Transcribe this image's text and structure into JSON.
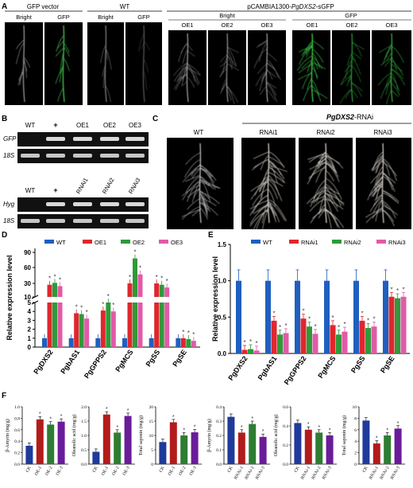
{
  "panels": {
    "A": {
      "letter": "A",
      "group1": {
        "title": "GFP vector",
        "labels": [
          "Bright",
          "GFP"
        ]
      },
      "group2": {
        "title": "WT",
        "labels": [
          "Bright",
          "GFP"
        ]
      },
      "group3": {
        "title": "pCAMBIA1300-",
        "title_italic": "PgDXS2",
        "title_suffix": "-sGFP",
        "sub_bright": "Bright",
        "sub_gfp": "GFP",
        "bright_lines": [
          "OE1",
          "OE2",
          "OE3"
        ],
        "gfp_lines": [
          "OE1",
          "OE2",
          "OE3"
        ]
      }
    },
    "B": {
      "letter": "B",
      "gel1": {
        "lanes": [
          "WT",
          "+",
          "OE1",
          "OE2",
          "OE3"
        ],
        "rows": [
          "GFP",
          "18S"
        ]
      },
      "gel2": {
        "lanes": [
          "WT",
          "+",
          "RNAi1",
          "RNAi2",
          "RNAi3"
        ],
        "rows": [
          "Hyg",
          "18S"
        ]
      }
    },
    "C": {
      "letter": "C",
      "title_italic": "PgDXS2",
      "title_suffix": "-RNAi",
      "wt": "WT",
      "lines": [
        "RNAi1",
        "RNAi2",
        "RNAi3"
      ]
    },
    "D": {
      "letter": "D"
    },
    "E": {
      "letter": "E"
    },
    "F": {
      "letter": "F"
    }
  },
  "chart_data": [
    {
      "id": "D",
      "type": "bar",
      "ylabel": "Relative expression level",
      "categories": [
        "PgDXS2",
        "PgbAS1",
        "PgGPPS2",
        "PgMCS",
        "PgSS",
        "PgSE"
      ],
      "yaxis_break": true,
      "ticks_lower": [
        "0",
        "1",
        "2",
        "3",
        "4",
        "5"
      ],
      "ticks_upper": [
        "10",
        "30",
        "60",
        "90"
      ],
      "series": [
        {
          "name": "WT",
          "color": "#1f5fbf",
          "values": [
            1,
            1,
            1,
            1,
            1,
            1
          ],
          "sig": [
            false,
            false,
            false,
            false,
            false,
            false
          ]
        },
        {
          "name": "OE1",
          "color": "#e0262d",
          "values": [
            28,
            3.8,
            4.1,
            30,
            30,
            1
          ],
          "sig": [
            true,
            true,
            true,
            true,
            true,
            true
          ]
        },
        {
          "name": "OE2",
          "color": "#2e9a3a",
          "values": [
            31,
            3.7,
            7.8,
            78,
            28,
            0.9
          ],
          "sig": [
            true,
            true,
            true,
            true,
            true,
            true
          ]
        },
        {
          "name": "OE3",
          "color": "#e25aa8",
          "values": [
            26,
            3.2,
            4.0,
            47,
            24,
            0.7
          ],
          "sig": [
            true,
            true,
            true,
            true,
            true,
            true
          ]
        }
      ]
    },
    {
      "id": "E",
      "type": "bar",
      "ylabel": "Relative expression level",
      "categories": [
        "PgDXS2",
        "PgbAS1",
        "PgGPPS2",
        "PgMCS",
        "PgSS",
        "PgSE"
      ],
      "ylim": [
        0,
        1.5
      ],
      "yticks": [
        "0.0",
        "0.5",
        "1.0",
        "1.5"
      ],
      "series": [
        {
          "name": "WT",
          "color": "#1f5fbf",
          "values": [
            1.0,
            1.0,
            1.0,
            1.0,
            1.0,
            1.0
          ],
          "sig": [
            false,
            false,
            false,
            false,
            false,
            false
          ]
        },
        {
          "name": "RNAi1",
          "color": "#e0262d",
          "values": [
            0.05,
            0.45,
            0.48,
            0.39,
            0.45,
            0.78
          ],
          "sig": [
            true,
            true,
            true,
            true,
            true,
            true
          ]
        },
        {
          "name": "RNAi2",
          "color": "#2e9a3a",
          "values": [
            0.06,
            0.26,
            0.37,
            0.26,
            0.35,
            0.76
          ],
          "sig": [
            true,
            true,
            true,
            true,
            true,
            true
          ]
        },
        {
          "name": "RNAi3",
          "color": "#e25aa8",
          "values": [
            0.04,
            0.28,
            0.27,
            0.3,
            0.37,
            0.78
          ],
          "sig": [
            true,
            true,
            true,
            true,
            true,
            true
          ]
        }
      ]
    },
    {
      "id": "F1",
      "type": "bar",
      "ylabel": "β-Amyrin (mg/g)",
      "categories": [
        "CK",
        "OE-1",
        "OE-2",
        "OE-3"
      ],
      "colors": [
        "#1f3a9a",
        "#b31b1b",
        "#2e7d32",
        "#6a1b9a"
      ],
      "values": [
        0.32,
        0.78,
        0.69,
        0.74
      ],
      "sig": [
        false,
        true,
        true,
        true
      ],
      "ylim": [
        0,
        1.0
      ],
      "yticks": [
        "0.0",
        "0.2",
        "0.4",
        "0.6",
        "0.8",
        "1.0"
      ]
    },
    {
      "id": "F2",
      "type": "bar",
      "ylabel": "Oleanolic acid (mg/g)",
      "categories": [
        "CK",
        "OE-1",
        "OE-2",
        "OE-3"
      ],
      "colors": [
        "#1f3a9a",
        "#b31b1b",
        "#2e7d32",
        "#6a1b9a"
      ],
      "values": [
        0.43,
        1.73,
        1.1,
        1.68
      ],
      "sig": [
        false,
        true,
        true,
        true
      ],
      "ylim": [
        0,
        2.0
      ],
      "yticks": [
        "0.0",
        "0.5",
        "1.0",
        "1.5",
        "2.0"
      ]
    },
    {
      "id": "F3",
      "type": "bar",
      "ylabel": "Total saponin (mg/g)",
      "categories": [
        "CK",
        "OE-1",
        "OE-2",
        "OE-3"
      ],
      "colors": [
        "#1f3a9a",
        "#b31b1b",
        "#2e7d32",
        "#6a1b9a"
      ],
      "values": [
        7.7,
        14.6,
        10.0,
        11.1
      ],
      "sig": [
        false,
        true,
        true,
        true
      ],
      "ylim": [
        0,
        20
      ],
      "yticks": [
        "0",
        "5",
        "10",
        "15",
        "20"
      ]
    },
    {
      "id": "F4",
      "type": "bar",
      "ylabel": "β-Amyrin (mg/g)",
      "categories": [
        "CK",
        "RNAi-1",
        "RNAi-2",
        "RNAi-3"
      ],
      "colors": [
        "#1f3a9a",
        "#b31b1b",
        "#2e7d32",
        "#6a1b9a"
      ],
      "values": [
        0.33,
        0.22,
        0.28,
        0.19
      ],
      "sig": [
        false,
        true,
        true,
        true
      ],
      "ylim": [
        0,
        0.4
      ],
      "yticks": [
        "0.0",
        "0.1",
        "0.2",
        "0.3",
        "0.4"
      ]
    },
    {
      "id": "F5",
      "type": "bar",
      "ylabel": "Oleanolic acid (mg/g)",
      "categories": [
        "CK",
        "RNAi-1",
        "RNAi-2",
        "RNAi-3"
      ],
      "colors": [
        "#1f3a9a",
        "#b31b1b",
        "#2e7d32",
        "#6a1b9a"
      ],
      "values": [
        0.43,
        0.36,
        0.33,
        0.3
      ],
      "sig": [
        false,
        true,
        true,
        true
      ],
      "ylim": [
        0,
        0.6
      ],
      "yticks": [
        "0.0",
        "0.2",
        "0.4",
        "0.6"
      ]
    },
    {
      "id": "F6",
      "type": "bar",
      "ylabel": "Total saponin (mg/g)",
      "categories": [
        "CK",
        "RNAi-1",
        "RNAi-2",
        "RNAi-3"
      ],
      "colors": [
        "#1f3a9a",
        "#b31b1b",
        "#2e7d32",
        "#6a1b9a"
      ],
      "values": [
        7.6,
        3.6,
        5.0,
        6.2
      ],
      "sig": [
        false,
        true,
        true,
        true
      ],
      "ylim": [
        0,
        10
      ],
      "yticks": [
        "0",
        "2",
        "4",
        "6",
        "8",
        "10"
      ]
    }
  ]
}
